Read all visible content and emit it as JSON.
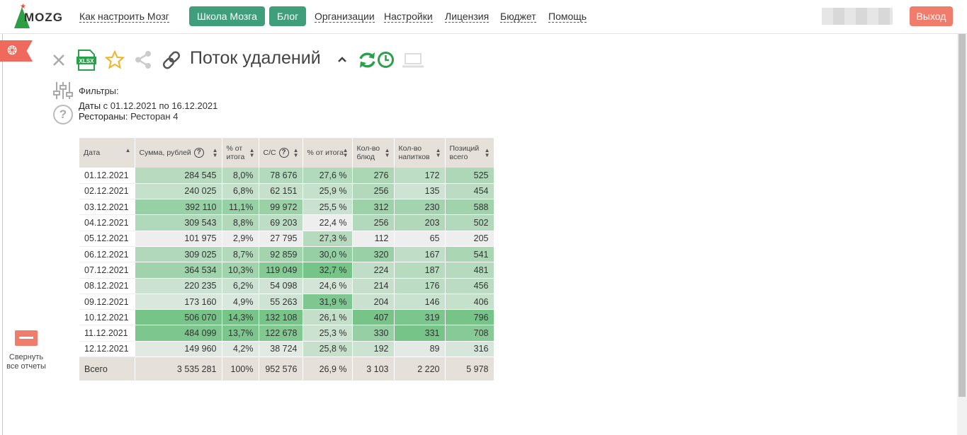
{
  "header": {
    "logo": "MOZG",
    "nav_links": [
      "Как настроить Мозг",
      "Организации",
      "Настройки",
      "Лицензия",
      "Бюджет",
      "Помощь"
    ],
    "buttons": [
      "Школа Мозга",
      "Блог"
    ],
    "exit": "Выход"
  },
  "sidebar": {
    "collapse_label": "Свернуть все отчеты"
  },
  "report": {
    "title": "Поток удалений",
    "filters_title": "Фильтры:",
    "filters": [
      {
        "label": "Даты",
        "value": " с 01.12.2021 по 16.12.2021"
      },
      {
        "label": "Рестораны:",
        "value": " Ресторан 4"
      }
    ]
  },
  "colors": {
    "accent_green": "#3f9e7b",
    "exit_red": "#f07c6c",
    "icon_green": "#2aa04a",
    "star_yellow": "#f0b323"
  },
  "table": {
    "columns": [
      {
        "label": "Дата",
        "sort_active": true,
        "help": false
      },
      {
        "label": "Сумма, рублей",
        "sort_active": false,
        "help": true
      },
      {
        "label": "% от итога",
        "sort_active": false,
        "help": false
      },
      {
        "label": "С/С",
        "sort_active": false,
        "help": true
      },
      {
        "label": "% от итога",
        "sort_active": false,
        "help": false
      },
      {
        "label": "Кол-во блюд",
        "sort_active": false,
        "help": false
      },
      {
        "label": "Кол-во напитков",
        "sort_active": false,
        "help": false
      },
      {
        "label": "Позиций всего",
        "sort_active": false,
        "help": false
      }
    ],
    "rows": [
      [
        "01.12.2021",
        "284 545",
        "8,0%",
        "78 676",
        "27,6 %",
        "276",
        "172",
        "525"
      ],
      [
        "02.12.2021",
        "240 025",
        "6,8%",
        "62 151",
        "25,9 %",
        "256",
        "135",
        "454"
      ],
      [
        "03.12.2021",
        "392 110",
        "11,1%",
        "99 972",
        "25,5 %",
        "312",
        "230",
        "588"
      ],
      [
        "04.12.2021",
        "309 543",
        "8,8%",
        "69 203",
        "22,4 %",
        "256",
        "203",
        "502"
      ],
      [
        "05.12.2021",
        "101 975",
        "2,9%",
        "27 795",
        "27,3 %",
        "112",
        "65",
        "205"
      ],
      [
        "06.12.2021",
        "309 025",
        "8,7%",
        "92 859",
        "30,0 %",
        "320",
        "167",
        "541"
      ],
      [
        "07.12.2021",
        "364 534",
        "10,3%",
        "119 049",
        "32,7 %",
        "224",
        "187",
        "481"
      ],
      [
        "08.12.2021",
        "220 235",
        "6,2%",
        "54 098",
        "24,6 %",
        "214",
        "176",
        "456"
      ],
      [
        "09.12.2021",
        "173 160",
        "4,9%",
        "55 263",
        "31,9 %",
        "204",
        "146",
        "406"
      ],
      [
        "10.12.2021",
        "506 070",
        "14,3%",
        "132 108",
        "26,1 %",
        "407",
        "319",
        "796"
      ],
      [
        "11.12.2021",
        "484 099",
        "13,7%",
        "122 678",
        "25,3 %",
        "330",
        "331",
        "708"
      ],
      [
        "12.12.2021",
        "149 960",
        "4,2%",
        "38 724",
        "25,8 %",
        "192",
        "89",
        "316"
      ]
    ],
    "total": [
      "Всего",
      "3 535 281",
      "100%",
      "952 576",
      "26,9 %",
      "3 103",
      "2 220",
      "5 978"
    ]
  }
}
